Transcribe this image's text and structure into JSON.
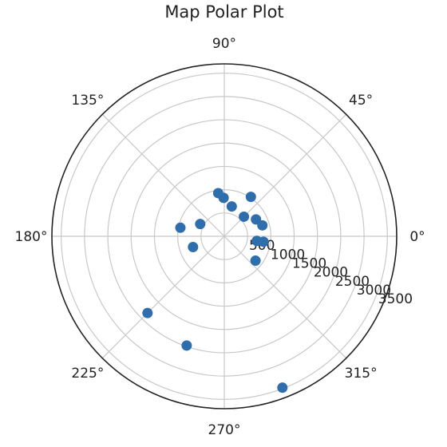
{
  "chart_data": {
    "type": "scatter",
    "projection": "polar",
    "title": "Map Polar Plot",
    "angle_unit": "degrees",
    "theta_ticks": [
      0,
      45,
      90,
      135,
      180,
      225,
      270,
      315
    ],
    "theta_tick_labels": [
      "0°",
      "45°",
      "90°",
      "135°",
      "180°",
      "225°",
      "270°",
      "315°"
    ],
    "r_ticks": [
      500,
      1000,
      1500,
      2000,
      2500,
      3000,
      3500
    ],
    "r_tick_labels": [
      "500",
      "1000",
      "1500",
      "2000",
      "2500",
      "3000",
      "3500"
    ],
    "rlim": [
      0,
      3700
    ],
    "grid": true,
    "marker_color": "#2f6ead",
    "points": [
      {
        "theta": 45,
        "r": 595
      },
      {
        "theta": 98,
        "r": 935
      },
      {
        "theta": 91,
        "r": 825
      },
      {
        "theta": 76,
        "r": 660
      },
      {
        "theta": 56,
        "r": 1020
      },
      {
        "theta": 28,
        "r": 770
      },
      {
        "theta": 16,
        "r": 850
      },
      {
        "theta": 352,
        "r": 705
      },
      {
        "theta": 352,
        "r": 850
      },
      {
        "theta": 322,
        "r": 850
      },
      {
        "theta": 199,
        "r": 710
      },
      {
        "theta": 153,
        "r": 580
      },
      {
        "theta": 169,
        "r": 960
      },
      {
        "theta": 225,
        "r": 2330
      },
      {
        "theta": 251,
        "r": 2480
      },
      {
        "theta": 291,
        "r": 3480
      }
    ]
  }
}
